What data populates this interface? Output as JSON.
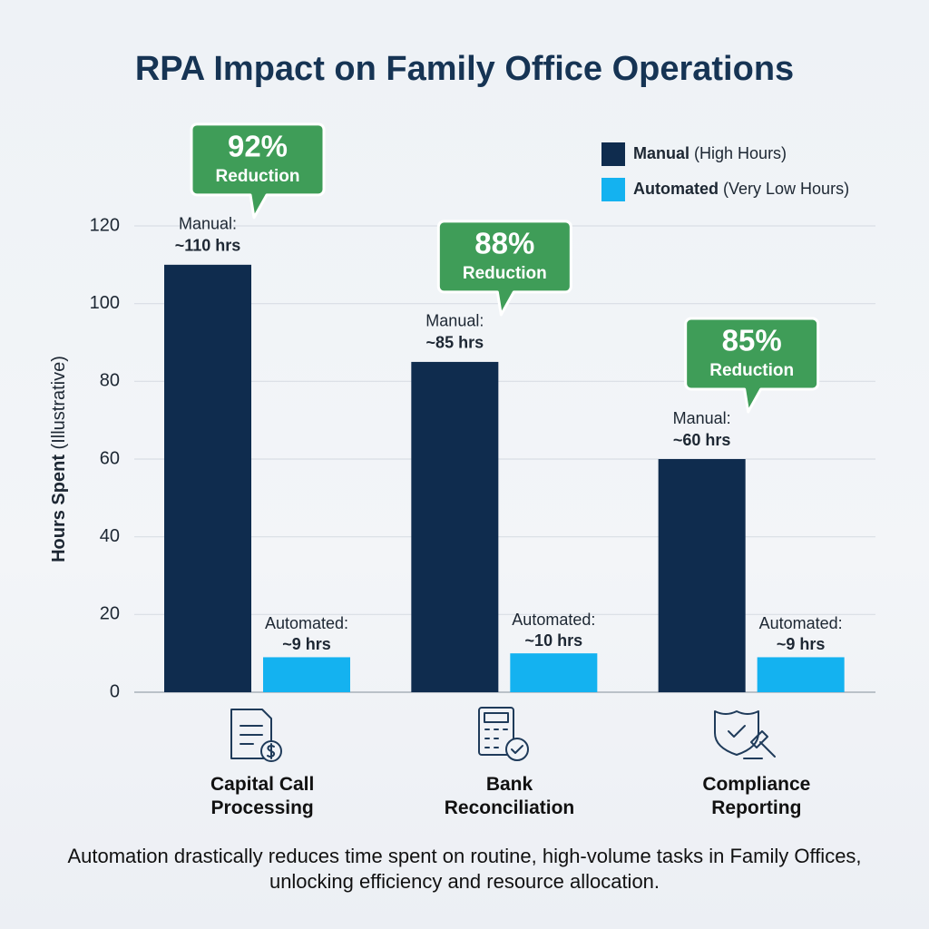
{
  "chart_data": {
    "type": "bar",
    "title": "RPA Impact on Family Office Operations",
    "y_label": "Hours Spent",
    "y_label_note": "(Illustrative)",
    "categories": [
      "Capital Call Processing",
      "Bank Reconciliation",
      "Compliance Reporting"
    ],
    "series": [
      {
        "name": "Manual",
        "legend_note": "(High Hours)",
        "label_prefix": "Manual:",
        "color": "#0f2c4e",
        "values": [
          110,
          85,
          60
        ],
        "value_labels": [
          "~110 hrs",
          "~85 hrs",
          "~60 hrs"
        ]
      },
      {
        "name": "Automated",
        "legend_note": "(Very Low Hours)",
        "label_prefix": "Automated:",
        "color": "#14b2f0",
        "values": [
          9,
          10,
          9
        ],
        "value_labels": [
          "~9 hrs",
          "~10 hrs",
          "~9 hrs"
        ]
      }
    ],
    "annotations": [
      {
        "value": 92,
        "label": "92%",
        "caption": "Reduction",
        "color": "#3f9d58"
      },
      {
        "value": 88,
        "label": "88%",
        "caption": "Reduction",
        "color": "#3f9d58"
      },
      {
        "value": 85,
        "label": "85%",
        "caption": "Reduction",
        "color": "#3f9d58"
      }
    ],
    "ylim": [
      0,
      120
    ],
    "yticks": [
      0,
      20,
      40,
      60,
      80,
      100,
      120
    ],
    "grid": true,
    "legend": "top-right",
    "footnote": "Automation drastically reduces time spent on routine, high-volume tasks in Family Offices, unlocking efficiency and resource allocation."
  }
}
